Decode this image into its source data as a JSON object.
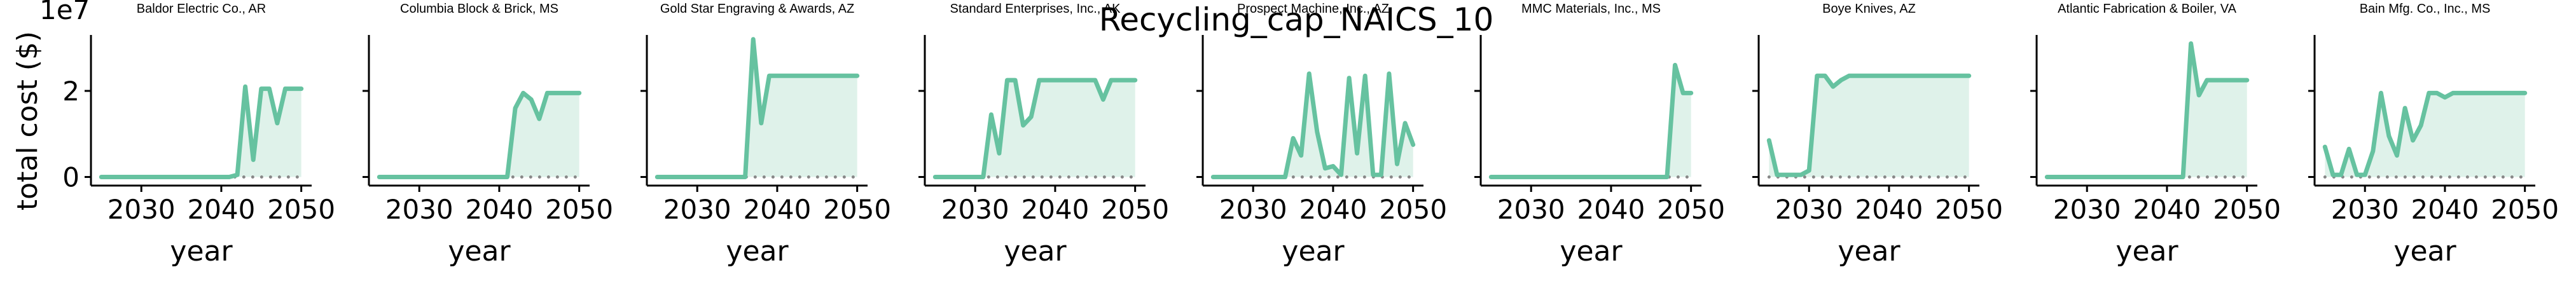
{
  "figure": {
    "suptitle": "Recycling_cap_NAICS_10",
    "ylabel": "total cost ($)",
    "offset_text": "1e7"
  },
  "colors": {
    "line": "#66c2a0",
    "fill": "#dff2ea",
    "baseline_dots": "#888888",
    "axis": "#000000"
  },
  "chart_data": [
    {
      "type": "area",
      "title": "Baldor Electric Co., AR",
      "xlabel": "year",
      "x": [
        2025,
        2026,
        2027,
        2028,
        2029,
        2030,
        2031,
        2032,
        2033,
        2034,
        2035,
        2036,
        2037,
        2038,
        2039,
        2040,
        2041,
        2042,
        2043,
        2044,
        2045,
        2046,
        2047,
        2048,
        2049,
        2050
      ],
      "y": [
        0,
        0,
        0,
        0,
        0,
        0,
        0,
        0,
        0,
        0,
        0,
        0,
        0,
        0,
        0,
        0,
        0,
        0.05,
        2.1,
        0.4,
        2.05,
        2.05,
        1.25,
        2.05,
        2.05,
        2.05
      ],
      "xlim": [
        2023.7,
        2051.3
      ],
      "ylim": [
        -0.2,
        3.3
      ],
      "xticks": [
        2030,
        2040,
        2050
      ],
      "yticks": [
        0,
        2
      ]
    },
    {
      "type": "area",
      "title": "Columbia Block & Brick, MS",
      "xlabel": "year",
      "x": [
        2025,
        2026,
        2027,
        2028,
        2029,
        2030,
        2031,
        2032,
        2033,
        2034,
        2035,
        2036,
        2037,
        2038,
        2039,
        2040,
        2041,
        2042,
        2043,
        2044,
        2045,
        2046,
        2047,
        2048,
        2049,
        2050
      ],
      "y": [
        0,
        0,
        0,
        0,
        0,
        0,
        0,
        0,
        0,
        0,
        0,
        0,
        0,
        0,
        0,
        0,
        0,
        1.6,
        1.95,
        1.8,
        1.35,
        1.95,
        1.95,
        1.95,
        1.95,
        1.95
      ],
      "xlim": [
        2023.7,
        2051.3
      ],
      "ylim": [
        -0.2,
        3.3
      ],
      "xticks": [
        2030,
        2040,
        2050
      ],
      "yticks": [
        0,
        2
      ]
    },
    {
      "type": "area",
      "title": "Gold Star Engraving & Awards, AZ",
      "xlabel": "year",
      "x": [
        2025,
        2026,
        2027,
        2028,
        2029,
        2030,
        2031,
        2032,
        2033,
        2034,
        2035,
        2036,
        2037,
        2038,
        2039,
        2040,
        2041,
        2042,
        2043,
        2044,
        2045,
        2046,
        2047,
        2048,
        2049,
        2050
      ],
      "y": [
        0,
        0,
        0,
        0,
        0,
        0,
        0,
        0,
        0,
        0,
        0,
        0,
        3.2,
        1.25,
        2.35,
        2.35,
        2.35,
        2.35,
        2.35,
        2.35,
        2.35,
        2.35,
        2.35,
        2.35,
        2.35,
        2.35
      ],
      "xlim": [
        2023.7,
        2051.3
      ],
      "ylim": [
        -0.2,
        3.3
      ],
      "xticks": [
        2030,
        2040,
        2050
      ],
      "yticks": [
        0,
        2
      ]
    },
    {
      "type": "area",
      "title": "Standard Enterprises, Inc., AK",
      "xlabel": "year",
      "x": [
        2025,
        2026,
        2027,
        2028,
        2029,
        2030,
        2031,
        2032,
        2033,
        2034,
        2035,
        2036,
        2037,
        2038,
        2039,
        2040,
        2041,
        2042,
        2043,
        2044,
        2045,
        2046,
        2047,
        2048,
        2049,
        2050
      ],
      "y": [
        0,
        0,
        0,
        0,
        0,
        0,
        0,
        1.45,
        0.55,
        2.25,
        2.25,
        1.2,
        1.4,
        2.25,
        2.25,
        2.25,
        2.25,
        2.25,
        2.25,
        2.25,
        2.25,
        1.8,
        2.25,
        2.25,
        2.25,
        2.25
      ],
      "xlim": [
        2023.7,
        2051.3
      ],
      "ylim": [
        -0.2,
        3.3
      ],
      "xticks": [
        2030,
        2040,
        2050
      ],
      "yticks": [
        0,
        2
      ]
    },
    {
      "type": "area",
      "title": "Prospect Machine, Inc., AZ",
      "xlabel": "year",
      "x": [
        2025,
        2026,
        2027,
        2028,
        2029,
        2030,
        2031,
        2032,
        2033,
        2034,
        2035,
        2036,
        2037,
        2038,
        2039,
        2040,
        2041,
        2042,
        2043,
        2044,
        2045,
        2046,
        2047,
        2048,
        2049,
        2050
      ],
      "y": [
        0,
        0,
        0,
        0,
        0,
        0,
        0,
        0,
        0,
        0,
        0.9,
        0.5,
        2.4,
        1.05,
        0.2,
        0.25,
        0.05,
        2.3,
        0.55,
        2.35,
        0.05,
        0.05,
        2.4,
        0.3,
        1.25,
        0.75
      ],
      "xlim": [
        2023.7,
        2051.3
      ],
      "ylim": [
        -0.2,
        3.3
      ],
      "xticks": [
        2030,
        2040,
        2050
      ],
      "yticks": [
        0,
        2
      ]
    },
    {
      "type": "area",
      "title": "MMC Materials, Inc., MS",
      "xlabel": "year",
      "x": [
        2025,
        2026,
        2027,
        2028,
        2029,
        2030,
        2031,
        2032,
        2033,
        2034,
        2035,
        2036,
        2037,
        2038,
        2039,
        2040,
        2041,
        2042,
        2043,
        2044,
        2045,
        2046,
        2047,
        2048,
        2049,
        2050
      ],
      "y": [
        0,
        0,
        0,
        0,
        0,
        0,
        0,
        0,
        0,
        0,
        0,
        0,
        0,
        0,
        0,
        0,
        0,
        0,
        0,
        0,
        0,
        0,
        0,
        2.6,
        1.95,
        1.95
      ],
      "xlim": [
        2023.7,
        2051.3
      ],
      "ylim": [
        -0.2,
        3.3
      ],
      "xticks": [
        2030,
        2040,
        2050
      ],
      "yticks": [
        0,
        2
      ]
    },
    {
      "type": "area",
      "title": "Boye Knives, AZ",
      "xlabel": "year",
      "x": [
        2025,
        2026,
        2027,
        2028,
        2029,
        2030,
        2031,
        2032,
        2033,
        2034,
        2035,
        2036,
        2037,
        2038,
        2039,
        2040,
        2041,
        2042,
        2043,
        2044,
        2045,
        2046,
        2047,
        2048,
        2049,
        2050
      ],
      "y": [
        0.85,
        0.05,
        0.05,
        0.05,
        0.05,
        0.15,
        2.35,
        2.35,
        2.1,
        2.25,
        2.35,
        2.35,
        2.35,
        2.35,
        2.35,
        2.35,
        2.35,
        2.35,
        2.35,
        2.35,
        2.35,
        2.35,
        2.35,
        2.35,
        2.35,
        2.35
      ],
      "xlim": [
        2023.7,
        2051.3
      ],
      "ylim": [
        -0.2,
        3.3
      ],
      "xticks": [
        2030,
        2040,
        2050
      ],
      "yticks": [
        0,
        2
      ]
    },
    {
      "type": "area",
      "title": "Atlantic Fabrication & Boiler, VA",
      "xlabel": "year",
      "x": [
        2025,
        2026,
        2027,
        2028,
        2029,
        2030,
        2031,
        2032,
        2033,
        2034,
        2035,
        2036,
        2037,
        2038,
        2039,
        2040,
        2041,
        2042,
        2043,
        2044,
        2045,
        2046,
        2047,
        2048,
        2049,
        2050
      ],
      "y": [
        0,
        0,
        0,
        0,
        0,
        0,
        0,
        0,
        0,
        0,
        0,
        0,
        0,
        0,
        0,
        0,
        0,
        0,
        3.1,
        1.9,
        2.25,
        2.25,
        2.25,
        2.25,
        2.25,
        2.25
      ],
      "xlim": [
        2023.7,
        2051.3
      ],
      "ylim": [
        -0.2,
        3.3
      ],
      "xticks": [
        2030,
        2040,
        2050
      ],
      "yticks": [
        0,
        2
      ]
    },
    {
      "type": "area",
      "title": "Bain Mfg. Co., Inc., MS",
      "xlabel": "year",
      "x": [
        2025,
        2026,
        2027,
        2028,
        2029,
        2030,
        2031,
        2032,
        2033,
        2034,
        2035,
        2036,
        2037,
        2038,
        2039,
        2040,
        2041,
        2042,
        2043,
        2044,
        2045,
        2046,
        2047,
        2048,
        2049,
        2050
      ],
      "y": [
        0.7,
        0.05,
        0.05,
        0.65,
        0.05,
        0.05,
        0.6,
        1.95,
        0.95,
        0.5,
        1.6,
        0.85,
        1.2,
        1.95,
        1.95,
        1.85,
        1.95,
        1.95,
        1.95,
        1.95,
        1.95,
        1.95,
        1.95,
        1.95,
        1.95,
        1.95
      ],
      "xlim": [
        2023.7,
        2051.3
      ],
      "ylim": [
        -0.2,
        3.3
      ],
      "xticks": [
        2030,
        2040,
        2050
      ],
      "yticks": [
        0,
        2
      ]
    }
  ]
}
